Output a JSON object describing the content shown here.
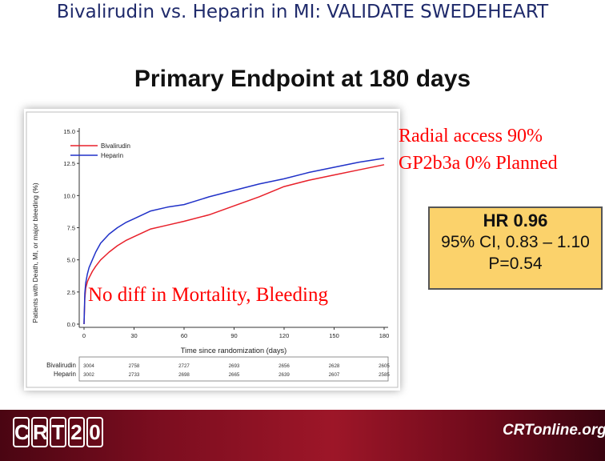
{
  "slide": {
    "title": "Bivalirudin vs. Heparin in MI: VALIDATE SWEDEHEART",
    "subtitle": "Primary Endpoint at 180 days",
    "note_radial": "Radial access 90%",
    "note_gp": "GP2b3a 0% Planned",
    "note_mortality": "No diff in Mortality, Bleeding"
  },
  "hr_box": {
    "hr": "HR 0.96",
    "ci": "95% CI, 0.83 – 1.10",
    "p": "P=0.54",
    "fill": "#fbd26b"
  },
  "footer": {
    "left_logo": "CRT20",
    "right_logo": "CRTonline.org"
  },
  "chart_data": {
    "type": "line",
    "xlabel": "Time since randomization (days)",
    "ylabel": "Patients with Death, MI, or major bleeding (%)",
    "xlim": [
      0,
      180
    ],
    "ylim": [
      0,
      15
    ],
    "x_ticks": [
      0,
      30,
      60,
      90,
      120,
      150,
      180
    ],
    "y_ticks": [
      "0.0",
      "2.5",
      "5.0",
      "7.5",
      "10.0",
      "12.5",
      "15.0"
    ],
    "legend_position": "top-left",
    "series": [
      {
        "name": "Bivalirudin",
        "color": "#e8202a",
        "points": [
          [
            0,
            0
          ],
          [
            0.5,
            2.0
          ],
          [
            1,
            2.8
          ],
          [
            2,
            3.3
          ],
          [
            3,
            3.6
          ],
          [
            5,
            4.1
          ],
          [
            7,
            4.5
          ],
          [
            10,
            5.0
          ],
          [
            15,
            5.6
          ],
          [
            20,
            6.1
          ],
          [
            25,
            6.5
          ],
          [
            30,
            6.8
          ],
          [
            40,
            7.4
          ],
          [
            50,
            7.7
          ],
          [
            60,
            8.0
          ],
          [
            75,
            8.5
          ],
          [
            90,
            9.2
          ],
          [
            105,
            9.9
          ],
          [
            120,
            10.7
          ],
          [
            135,
            11.2
          ],
          [
            150,
            11.6
          ],
          [
            165,
            12.0
          ],
          [
            180,
            12.4
          ]
        ]
      },
      {
        "name": "Heparin",
        "color": "#2031c8",
        "points": [
          [
            0,
            0
          ],
          [
            0.5,
            2.4
          ],
          [
            1,
            3.2
          ],
          [
            2,
            3.9
          ],
          [
            3,
            4.4
          ],
          [
            5,
            5.0
          ],
          [
            7,
            5.6
          ],
          [
            10,
            6.3
          ],
          [
            15,
            7.0
          ],
          [
            20,
            7.5
          ],
          [
            25,
            7.9
          ],
          [
            30,
            8.2
          ],
          [
            40,
            8.8
          ],
          [
            50,
            9.1
          ],
          [
            60,
            9.3
          ],
          [
            75,
            9.9
          ],
          [
            90,
            10.4
          ],
          [
            105,
            10.9
          ],
          [
            120,
            11.3
          ],
          [
            135,
            11.8
          ],
          [
            150,
            12.2
          ],
          [
            165,
            12.6
          ],
          [
            180,
            12.9
          ]
        ]
      }
    ],
    "at_risk": {
      "days": [
        0,
        30,
        60,
        90,
        120,
        150,
        180
      ],
      "rows": [
        {
          "label": "Bivalirudin",
          "values": [
            "3004",
            "2758",
            "2727",
            "2693",
            "2656",
            "2628",
            "2605"
          ]
        },
        {
          "label": "Heparin",
          "values": [
            "3002",
            "2733",
            "2698",
            "2665",
            "2639",
            "2607",
            "2585"
          ]
        }
      ]
    }
  }
}
